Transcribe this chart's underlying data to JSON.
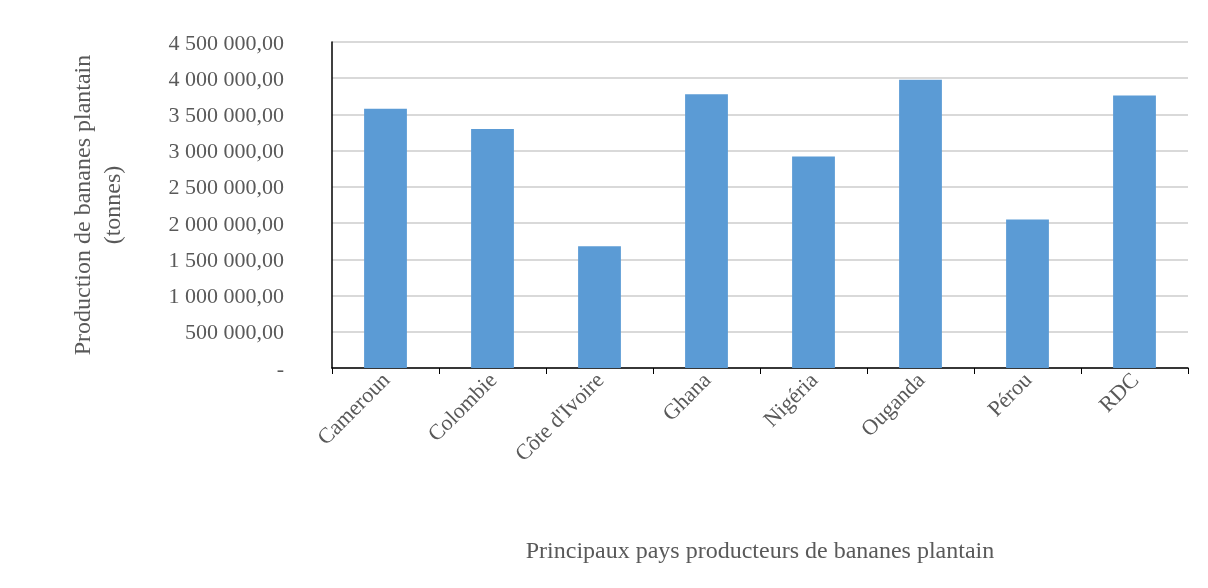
{
  "chart_data": {
    "type": "bar",
    "xlabel": "Principaux pays producteurs de bananes plantain",
    "ylabel": "Production de bananes plantain\n(tonnes)",
    "categories": [
      "Cameroun",
      "Colombie",
      "Côte d'Ivoire",
      "Ghana",
      "Nigéria",
      "Ouganda",
      "Pérou",
      "RDC"
    ],
    "values": [
      3580000,
      3300000,
      1680000,
      3780000,
      2920000,
      3980000,
      2050000,
      3760000
    ],
    "color": "#5b9bd5",
    "ylim": [
      0,
      4500000
    ],
    "yticks": [
      {
        "value": 0,
        "label": "-"
      },
      {
        "value": 500000,
        "label": "500 000,00"
      },
      {
        "value": 1000000,
        "label": "1 000 000,00"
      },
      {
        "value": 1500000,
        "label": "1 500 000,00"
      },
      {
        "value": 2000000,
        "label": "2 000 000,00"
      },
      {
        "value": 2500000,
        "label": "2 500 000,00"
      },
      {
        "value": 3000000,
        "label": "3 000 000,00"
      },
      {
        "value": 3500000,
        "label": "3 500 000,00"
      },
      {
        "value": 4000000,
        "label": "4 000 000,00"
      },
      {
        "value": 4500000,
        "label": "4 500 000,00"
      }
    ],
    "grid": "y"
  }
}
